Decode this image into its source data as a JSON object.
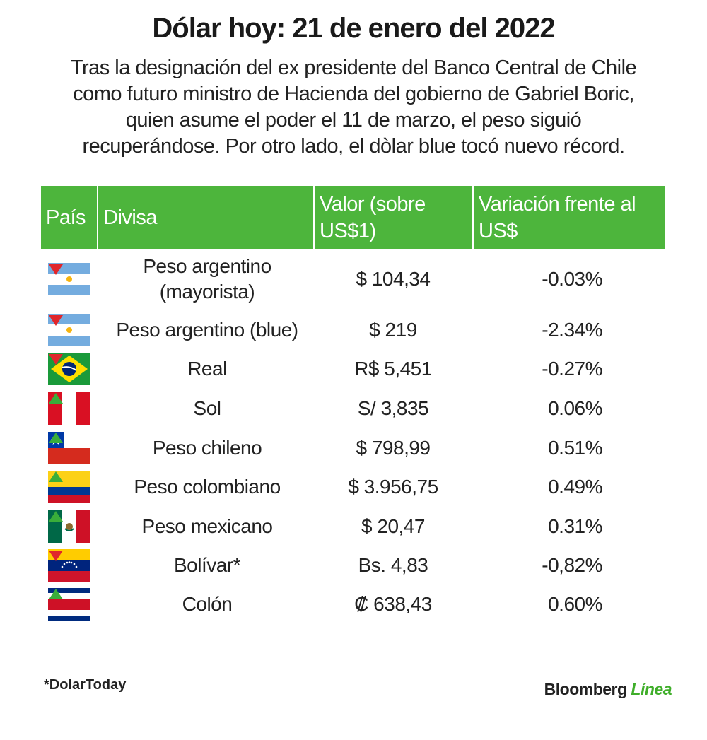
{
  "header": {
    "title": "Dólar hoy: 21 de enero del 2022",
    "subtitle": [
      "Tras la designación del ex presidente del Banco Central de Chile",
      "como futuro ministro de Hacienda del gobierno de Gabriel Boric,",
      "quien asume el poder el 11 de marzo, el peso siguió",
      "recuperándose.  Por otro lado, el dòlar blue tocó nuevo récord."
    ]
  },
  "table": {
    "columns": [
      "País",
      "Divisa",
      "Valor (sobre US$1)",
      "Variación frente al US$"
    ],
    "rows": [
      [
        "Peso argentino (mayorista)",
        "$ 104,34",
        "-0.03%"
      ],
      [
        "Peso argentino (blue)",
        "$ 219",
        "-2.34%"
      ],
      [
        "Real",
        "R$ 5,451",
        "-0.27%"
      ],
      [
        "Sol",
        "S/ 3,835",
        "0.06%"
      ],
      [
        "Peso chileno",
        "$ 798,99",
        "0.51%"
      ],
      [
        "Peso colombiano",
        "$ 3.956,75",
        "0.49%"
      ],
      [
        "Peso mexicano",
        "$ 20,47",
        "0.31%"
      ],
      [
        "Bolívar*",
        "Bs. 4,83",
        "-0,82%"
      ],
      [
        "Colón",
        "₡ 638,43",
        "0.60%"
      ]
    ]
  },
  "footer": {
    "note": "*DolarToday",
    "brand": "Bloomberg",
    "brand_accent": "Línea"
  }
}
